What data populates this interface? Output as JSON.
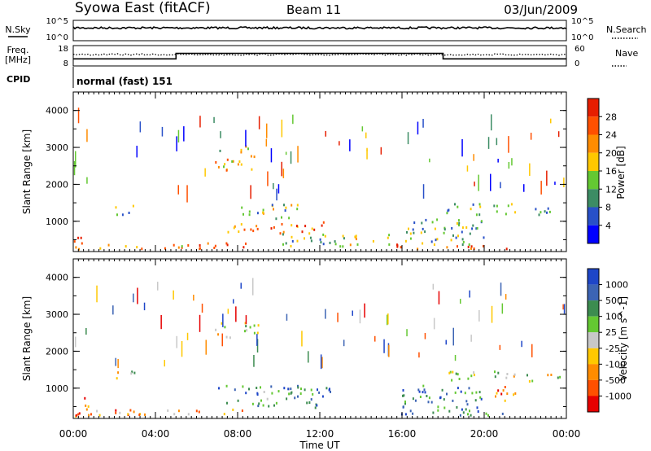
{
  "header": {
    "station": "Syowa East (fitACF)",
    "beam": "Beam 11",
    "date": "03/Jun/2009"
  },
  "chart_data": [
    {
      "type": "line",
      "panel": "noise",
      "left_labels": [
        "N.Sky"
      ],
      "left_ticks": [
        "10^5",
        "10^0"
      ],
      "right_labels": [
        "N.Search"
      ],
      "right_ticks": [
        "10^5",
        "10^0"
      ]
    },
    {
      "type": "line",
      "panel": "frequency",
      "left_labels": [
        "Freq.",
        "[MHz]"
      ],
      "left_ticks": [
        "18",
        "8"
      ],
      "right_labels": [
        "Nave"
      ],
      "right_ticks": [
        "60",
        "0"
      ],
      "freq_steps": [
        {
          "from_ut": 0,
          "to_ut": 5,
          "level": 0.35
        },
        {
          "from_ut": 5,
          "to_ut": 18,
          "level": 0.62
        },
        {
          "from_ut": 18,
          "to_ut": 24,
          "level": 0.35
        }
      ]
    },
    {
      "type": "text",
      "panel": "cpid",
      "label": "CPID",
      "value": "normal (fast) 151"
    },
    {
      "type": "heatmap",
      "panel": "power",
      "ylabel": "Slant Range [km]",
      "yticks": [
        "1000",
        "2000",
        "3000",
        "4000"
      ],
      "ylim": [
        180,
        4500
      ],
      "colorbar": {
        "label": "Power [dB]",
        "ticks": [
          "4",
          "8",
          "12",
          "16",
          "20",
          "24",
          "28"
        ],
        "colors": [
          "#0000ff",
          "#2850c8",
          "#3c8c64",
          "#64c832",
          "#ffc800",
          "#ff8c00",
          "#ff5000",
          "#e61e00"
        ]
      },
      "echo_regions": [
        {
          "t0": 0.0,
          "t1": 0.6,
          "r0": 200,
          "r1": 800,
          "level": 0.85
        },
        {
          "t0": 1.0,
          "t1": 8.5,
          "r0": 280,
          "r1": 450,
          "level": 0.7
        },
        {
          "t0": 6.8,
          "t1": 9.0,
          "r0": 2400,
          "r1": 2800,
          "level": 0.65
        },
        {
          "t0": 7.0,
          "t1": 8.5,
          "r0": 2900,
          "r1": 3100,
          "level": 0.5
        },
        {
          "t0": 7.5,
          "t1": 12.5,
          "r0": 700,
          "r1": 1000,
          "level": 0.75
        },
        {
          "t0": 8.0,
          "t1": 11.0,
          "r0": 1100,
          "r1": 1500,
          "level": 0.45
        },
        {
          "t0": 10.0,
          "t1": 15.5,
          "r0": 350,
          "r1": 700,
          "level": 0.45
        },
        {
          "t0": 2.0,
          "t1": 3.0,
          "r0": 1200,
          "r1": 1500,
          "level": 0.4
        },
        {
          "t0": 15.5,
          "t1": 21.5,
          "r0": 280,
          "r1": 420,
          "level": 0.8
        },
        {
          "t0": 16.0,
          "t1": 20.0,
          "r0": 400,
          "r1": 1100,
          "level": 0.35
        },
        {
          "t0": 18.0,
          "t1": 21.5,
          "r0": 1200,
          "r1": 1500,
          "level": 0.4
        },
        {
          "t0": 22.0,
          "t1": 24.0,
          "r0": 1200,
          "r1": 1400,
          "level": 0.35
        }
      ]
    },
    {
      "type": "heatmap",
      "panel": "velocity",
      "ylabel": "Slant Range [km]",
      "yticks": [
        "1000",
        "2000",
        "3000",
        "4000"
      ],
      "ylim": [
        180,
        4500
      ],
      "xlabel": "Time UT",
      "xticks": [
        "00:00",
        "04:00",
        "08:00",
        "12:00",
        "16:00",
        "20:00",
        "00:00"
      ],
      "xlim_hours": [
        0,
        24
      ],
      "colorbar": {
        "label": "Velocity [m s^-1]",
        "ticks": [
          "1000",
          "500",
          "100",
          "25",
          "-25",
          "-100",
          "-500",
          "-1000"
        ],
        "colors": [
          "#1e46c8",
          "#3c64b4",
          "#3c8c50",
          "#64c832",
          "#c8c8c8",
          "#ffc800",
          "#ff8c00",
          "#ff5000",
          "#e60000"
        ]
      },
      "echo_regions": [
        {
          "t0": 0.0,
          "t1": 1.0,
          "r0": 200,
          "r1": 800,
          "level": 0.85
        },
        {
          "t0": 1.0,
          "t1": 8.5,
          "r0": 280,
          "r1": 450,
          "level": 0.7
        },
        {
          "t0": 6.8,
          "t1": 9.0,
          "r0": 2400,
          "r1": 2800,
          "level": 0.5
        },
        {
          "t0": 7.0,
          "t1": 12.5,
          "r0": 500,
          "r1": 1100,
          "level": 0.25
        },
        {
          "t0": 2.0,
          "t1": 3.0,
          "r0": 1200,
          "r1": 1500,
          "level": 0.5
        },
        {
          "t0": 15.5,
          "t1": 21.5,
          "r0": 280,
          "r1": 420,
          "level": 0.2
        },
        {
          "t0": 16.0,
          "t1": 20.0,
          "r0": 400,
          "r1": 1100,
          "level": 0.2
        },
        {
          "t0": 18.0,
          "t1": 21.5,
          "r0": 1200,
          "r1": 1500,
          "level": 0.5
        },
        {
          "t0": 20.5,
          "t1": 21.5,
          "r0": 600,
          "r1": 1200,
          "level": 0.85
        },
        {
          "t0": 22.0,
          "t1": 24.0,
          "r0": 1200,
          "r1": 1400,
          "level": 0.5
        }
      ]
    }
  ]
}
